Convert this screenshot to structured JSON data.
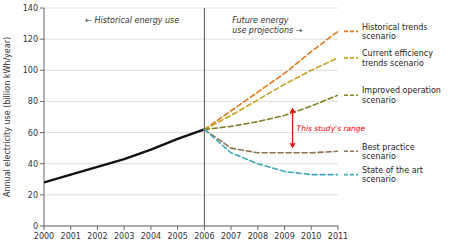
{
  "chart_data": {
    "type": "line",
    "y_label": "Annual electricity use (billion kWh/year)",
    "xlim": [
      2000,
      2011
    ],
    "ylim": [
      0,
      140
    ],
    "xticks": [
      2000,
      2001,
      2002,
      2003,
      2004,
      2005,
      2006,
      2007,
      2008,
      2009,
      2010,
      2011
    ],
    "yticks": [
      0,
      20,
      40,
      60,
      80,
      100,
      120,
      140
    ],
    "grid": "y",
    "series": [
      {
        "color": "#111111",
        "line_style": "solid",
        "x": [
          2000,
          2001,
          2002,
          2003,
          2004,
          2005,
          2006
        ],
        "values": [
          28,
          33,
          38,
          43,
          49,
          56,
          62
        ]
      },
      {
        "name": "Historical trends\nscenario",
        "color": "#E07820",
        "line_style": "dashed",
        "x": [
          2006,
          2007,
          2008,
          2009,
          2010,
          2011
        ],
        "values": [
          62,
          74,
          86,
          98,
          112,
          125
        ]
      },
      {
        "name": "Current efficiency\ntrends scenario",
        "color": "#C8A020",
        "line_style": "dashed",
        "x": [
          2006,
          2007,
          2008,
          2009,
          2010,
          2011
        ],
        "values": [
          62,
          71,
          81,
          91,
          100,
          108
        ]
      },
      {
        "name": "Improved operation\nscenario",
        "color": "#808020",
        "line_style": "dashed",
        "x": [
          2006,
          2007,
          2008,
          2009,
          2010,
          2011
        ],
        "values": [
          62,
          64,
          67,
          71,
          77,
          84
        ]
      },
      {
        "name": "Best practice\nscenario",
        "color": "#907050",
        "line_style": "dashed",
        "x": [
          2006,
          2007,
          2008,
          2009,
          2010,
          2011
        ],
        "values": [
          62,
          50,
          47,
          47,
          47,
          48
        ]
      },
      {
        "name": "State of the art\nscenario",
        "color": "#40A8B8",
        "line_style": "dashed",
        "x": [
          2006,
          2007,
          2008,
          2009,
          2010,
          2011
        ],
        "values": [
          62,
          47,
          40,
          35,
          33,
          33
        ]
      }
    ],
    "annotations": [
      {
        "text": "← Historical energy use"
      },
      {
        "text": "Future energy"
      },
      {
        "text": "use projections →"
      },
      {
        "text": "This study's range",
        "x": 2009.3,
        "y": [
          76,
          50
        ],
        "color": "red"
      },
      {
        "type": "vline",
        "x": 2006,
        "color": "#555555"
      }
    ]
  }
}
